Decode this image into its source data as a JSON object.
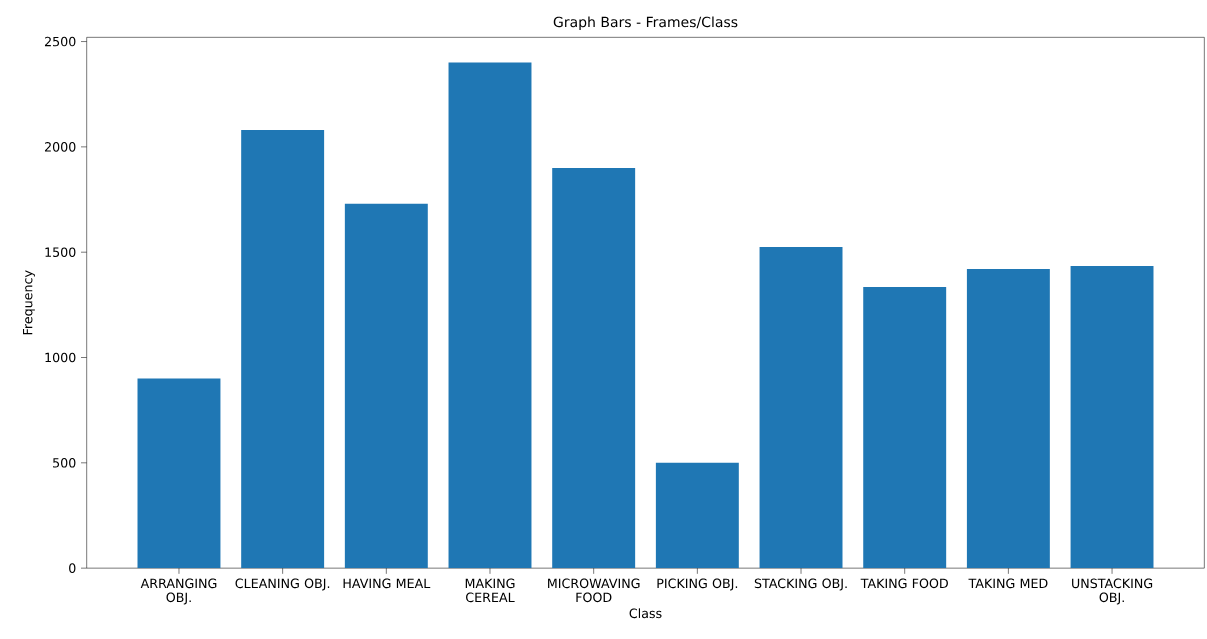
{
  "chart_data": {
    "type": "bar",
    "title": "Graph Bars - Frames/Class",
    "xlabel": "Class",
    "ylabel": "Frequency",
    "categories": [
      "ARRANGING OBJ.",
      "CLEANING OBJ.",
      "HAVING MEAL",
      "MAKING CEREAL",
      "MICROWAVING FOOD",
      "PICKING OBJ.",
      "STACKING OBJ.",
      "TAKING FOOD",
      "TAKING MED",
      "UNSTACKING OBJ."
    ],
    "values": [
      900,
      2080,
      1730,
      2400,
      1900,
      500,
      1525,
      1335,
      1420,
      1435
    ],
    "color": "#1f77b4",
    "ylim": [
      0,
      2520
    ],
    "yticks": [
      0,
      500,
      1000,
      1500,
      2000,
      2500
    ],
    "grid": false
  }
}
